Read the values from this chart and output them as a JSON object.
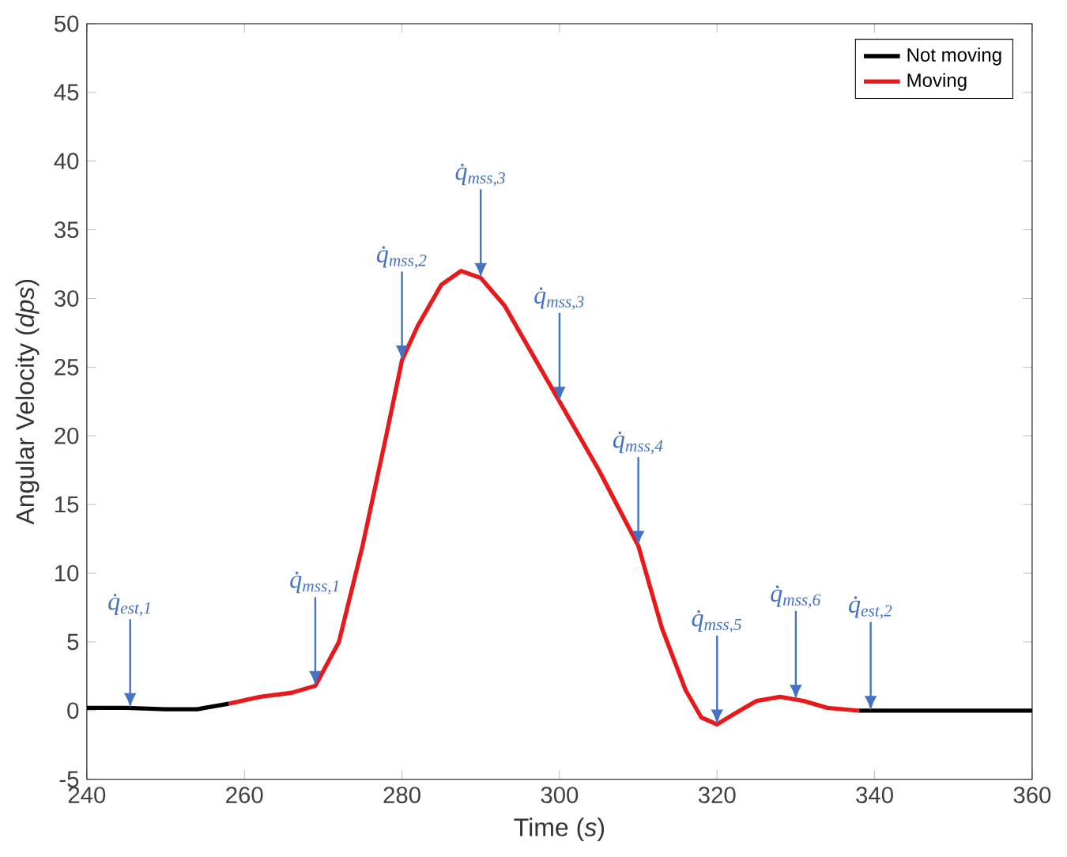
{
  "chart_data": {
    "type": "line",
    "xlabel": "Time (*s*)",
    "ylabel": "Angular Velocity (*dps*)",
    "xlim": [
      240,
      360
    ],
    "xticks": [
      240,
      260,
      280,
      300,
      320,
      340,
      360
    ],
    "ylim": [
      -5,
      50
    ],
    "yticks": [
      -5,
      0,
      5,
      10,
      15,
      20,
      25,
      30,
      35,
      40,
      45,
      50
    ],
    "grid": false,
    "legend": "top right",
    "line_style": "solid",
    "marker": "none",
    "series": [
      {
        "name": "Not moving",
        "color": "#000000",
        "x": [
          240,
          245,
          250,
          254,
          258,
          300,
          338,
          345,
          350,
          355,
          360
        ],
        "values": [
          0.2,
          0.2,
          0.1,
          0.1,
          0.5,
          null,
          0,
          0,
          0,
          0,
          0
        ]
      },
      {
        "name": "Moving",
        "color": "#e8191b",
        "x": [
          258,
          262,
          266,
          269,
          272,
          275,
          278,
          280,
          282,
          285,
          287.5,
          290,
          293,
          296,
          300,
          305,
          310,
          313,
          316,
          318,
          320,
          322,
          325,
          328,
          331,
          334,
          338
        ],
        "values": [
          0.5,
          1.0,
          1.3,
          1.8,
          5,
          12,
          20,
          25.5,
          28,
          31,
          32,
          31.5,
          29.5,
          26.5,
          22.5,
          17.5,
          12,
          6,
          1.5,
          -0.5,
          -1,
          -0.3,
          0.7,
          1,
          0.7,
          0.2,
          0
        ]
      }
    ],
    "annotations": [
      {
        "text": "q̇$_{est,1}$",
        "x": 245.5,
        "y": 0.2
      },
      {
        "text": "q̇$_{mss,1}$",
        "x": 269,
        "y": 1.8
      },
      {
        "text": "q̇$_{mss,2}$",
        "x": 280,
        "y": 25.5
      },
      {
        "text": "q̇$_{mss,3}$",
        "x": 290,
        "y": 31.5
      },
      {
        "text": "q̇$_{mss,3}$",
        "x": 300,
        "y": 22.5
      },
      {
        "text": "q̇$_{mss,4}$",
        "x": 310,
        "y": 12
      },
      {
        "text": "q̇$_{mss,5}$",
        "x": 320,
        "y": -1
      },
      {
        "text": "q̇$_{mss,6}$",
        "x": 330,
        "y": 0.8
      },
      {
        "text": "q̇$_{est,2}$",
        "x": 339.5,
        "y": 0
      }
    ]
  }
}
